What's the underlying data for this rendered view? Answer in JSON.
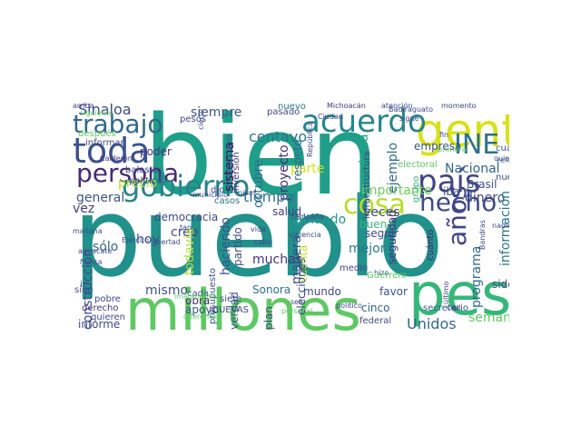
{
  "word_cloud": {
    "words": [
      {
        "text": "pueblo",
        "color": "#21918c",
        "rotate": false
      },
      {
        "text": "bien",
        "color": "#1f9e89",
        "rotate": false
      },
      {
        "text": "millones",
        "color": "#5ec962",
        "rotate": false
      },
      {
        "text": "peso",
        "color": "#35b779",
        "rotate": false
      },
      {
        "text": "gente",
        "color": "#d8e219",
        "rotate": false
      },
      {
        "text": "acuerdo",
        "color": "#25848e",
        "rotate": false
      },
      {
        "text": "trabajo",
        "color": "#31688e",
        "rotate": false
      },
      {
        "text": "toda",
        "color": "#3b528b",
        "rotate": false
      },
      {
        "text": "persona",
        "color": "#482878",
        "rotate": false
      },
      {
        "text": "INE",
        "color": "#2c728e",
        "rotate": false
      },
      {
        "text": "gobierno",
        "color": "#26828e",
        "rotate": false
      },
      {
        "text": "país",
        "color": "#414487",
        "rotate": false
      },
      {
        "text": "hecho",
        "color": "#3e4a89",
        "rotate": false
      },
      {
        "text": "cosa",
        "color": "#b5de2b",
        "rotate": false
      },
      {
        "text": "años",
        "color": "#414487",
        "rotate": true
      },
      {
        "text": "Sinaloa",
        "color": "#3e4a89",
        "rotate": false
      },
      {
        "text": "siempre",
        "color": "#38588c",
        "rotate": false
      },
      {
        "text": "centavo",
        "color": "#2a788e",
        "rotate": false
      },
      {
        "text": "sistema",
        "color": "#440154",
        "rotate": true
      },
      {
        "text": "octubre",
        "color": "#2e6e8e",
        "rotate": true
      },
      {
        "text": "proyecto",
        "color": "#472d7b",
        "rotate": true
      },
      {
        "text": "parte",
        "color": "#d0e11c",
        "rotate": false
      },
      {
        "text": "Secretaría",
        "color": "#22a884",
        "rotate": true
      },
      {
        "text": "ejemplo",
        "color": "#31688e",
        "rotate": true
      },
      {
        "text": "importante",
        "color": "#6ece58",
        "rotate": false
      },
      {
        "text": "Nacional",
        "color": "#33638d",
        "rotate": false
      },
      {
        "text": "Brasil",
        "color": "#3b528b",
        "rotate": false
      },
      {
        "text": "dinero",
        "color": "#3e4a89",
        "rotate": false
      },
      {
        "text": "empresa",
        "color": "#3b528b",
        "rotate": false
      },
      {
        "text": "poder",
        "color": "#46327e",
        "rotate": false
      },
      {
        "text": "precio",
        "color": "#bddf26",
        "rotate": false
      },
      {
        "text": "general",
        "color": "#3b528b",
        "rotate": false
      },
      {
        "text": "vez",
        "color": "#443983",
        "rotate": false
      },
      {
        "text": "tiempo",
        "color": "#2c728e",
        "rotate": false
      },
      {
        "text": "democracia",
        "color": "#3e4a89",
        "rotate": false
      },
      {
        "text": "salud",
        "color": "#423f85",
        "rotate": false
      },
      {
        "text": "hablando",
        "color": "#1f9a8a",
        "rotate": false
      },
      {
        "text": "veces",
        "color": "#3e4a89",
        "rotate": false
      },
      {
        "text": "buena",
        "color": "#35b779",
        "rotate": false
      },
      {
        "text": "seguridad",
        "color": "#46327e",
        "rotate": true
      },
      {
        "text": "iba",
        "color": "#3b528b",
        "rotate": false
      },
      {
        "text": "información",
        "color": "#2c728e",
        "rotate": true
      },
      {
        "text": "programa",
        "color": "#31688e",
        "rotate": true
      },
      {
        "text": "sólo",
        "color": "#31688e",
        "rotate": false
      },
      {
        "text": "hoy",
        "color": "#3b528b",
        "rotate": false
      },
      {
        "text": "creo",
        "color": "#3e4a89",
        "rotate": false
      },
      {
        "text": "muchas",
        "color": "#46327e",
        "rotate": false
      },
      {
        "text": "manera",
        "color": "#3e4a89",
        "rotate": true
      },
      {
        "text": "cuenta",
        "color": "#bddf26",
        "rotate": true
      },
      {
        "text": "mejor",
        "color": "#2a788e",
        "rotate": false
      },
      {
        "text": "seguir",
        "color": "#3e4a89",
        "rotate": false
      },
      {
        "text": "construcción",
        "color": "#3e4a89",
        "rotate": true
      },
      {
        "text": "mismo",
        "color": "#3b528b",
        "rotate": false
      },
      {
        "text": "Sonora",
        "color": "#2c728e",
        "rotate": false
      },
      {
        "text": "mundo",
        "color": "#3e4a89",
        "rotate": false
      },
      {
        "text": "favor",
        "color": "#3b528b",
        "rotate": false
      },
      {
        "text": "cinco",
        "color": "#33638d",
        "rotate": false
      },
      {
        "text": "Unidos",
        "color": "#31688e",
        "rotate": false
      },
      {
        "text": "semana",
        "color": "#5ec962",
        "rotate": false
      },
      {
        "text": "informe",
        "color": "#3e4a89",
        "rotate": false
      },
      {
        "text": "todavía",
        "color": "#b5de2b",
        "rotate": true
      },
      {
        "text": "haciendo",
        "color": "#3b528b",
        "rotate": true
      },
      {
        "text": "partido",
        "color": "#3e4a89",
        "rotate": true
      },
      {
        "text": "verdad",
        "color": "#3b528b",
        "rotate": true
      },
      {
        "text": "plan",
        "color": "#3e4a89",
        "rotate": true
      },
      {
        "text": "obra",
        "color": "#482878",
        "rotate": false
      },
      {
        "text": "apoyo",
        "color": "#3b528b",
        "rotate": false
      },
      {
        "text": "elecciones",
        "color": "#3e4a89",
        "rotate": true
      },
      {
        "text": "sido",
        "color": "#3e4a89",
        "rotate": false
      },
      {
        "text": "secretario",
        "color": "#3b528b",
        "rotate": false
      },
      {
        "text": "Michoacán",
        "color": "#46327e",
        "rotate": false
      },
      {
        "text": "pasado",
        "color": "#3e4a89",
        "rotate": false
      },
      {
        "text": "nuevo",
        "color": "#2a788e",
        "rotate": false
      },
      {
        "text": "respeto",
        "color": "#31688e",
        "rotate": true
      },
      {
        "text": "mexicano",
        "color": "#3b528b",
        "rotate": true
      },
      {
        "text": "inversión",
        "color": "#46327e",
        "rotate": true
      },
      {
        "text": "informar",
        "color": "#3e4a89",
        "rotate": false
      },
      {
        "text": "pesos",
        "color": "#3e4a89",
        "rotate": false
      },
      {
        "text": "dio",
        "color": "#3e4a89",
        "rotate": false
      },
      {
        "text": "grupo",
        "color": "#35b779",
        "rotate": true
      },
      {
        "text": "cuatro",
        "color": "#3b528b",
        "rotate": false
      },
      {
        "text": "reforma",
        "color": "#31688e",
        "rotate": false
      },
      {
        "text": "nueva",
        "color": "#3e4a89",
        "rotate": false
      },
      {
        "text": "cuánto",
        "color": "#482878",
        "rotate": true
      },
      {
        "text": "siete",
        "color": "#3e4a89",
        "rotate": false
      },
      {
        "text": "cada",
        "color": "#3b528b",
        "rotate": false
      },
      {
        "text": "pobre",
        "color": "#3e4a89",
        "rotate": false
      },
      {
        "text": "derecho",
        "color": "#46327e",
        "rotate": false
      },
      {
        "text": "quieren",
        "color": "#3e4a89",
        "rotate": false
      },
      {
        "text": "sino",
        "color": "#3e4a89",
        "rotate": false
      },
      {
        "text": "ir",
        "color": "#3b528b",
        "rotate": false
      },
      {
        "text": "federal",
        "color": "#3e4a89",
        "rotate": false
      },
      {
        "text": "casos",
        "color": "#2c728e",
        "rotate": false
      },
      {
        "text": "tan",
        "color": "#3e4a89",
        "rotate": false
      },
      {
        "text": "medio",
        "color": "#3e4a89",
        "rotate": false
      },
      {
        "text": "hizo",
        "color": "#3e4a89",
        "rotate": false
      },
      {
        "text": "Guerrero",
        "color": "#5ec962",
        "rotate": false
      },
      {
        "text": "CUEVAS",
        "color": "#3e4a89",
        "rotate": false
      },
      {
        "text": "presupuesto",
        "color": "#3b528b",
        "rotate": true
      },
      {
        "text": "infraestructura",
        "color": "#3e4a89",
        "rotate": true
      },
      {
        "text": "electoral",
        "color": "#5ec962",
        "rotate": false
      },
      {
        "text": "arriba",
        "color": "#3e4a89",
        "rotate": false
      },
      {
        "text": "siguiente",
        "color": "#5ec962",
        "rotate": false
      },
      {
        "text": "después",
        "color": "#5ec962",
        "rotate": false
      },
      {
        "text": "Calderón",
        "color": "#46327e",
        "rotate": false
      },
      {
        "text": "balasto",
        "color": "#3e4a89",
        "rotate": false
      },
      {
        "text": "política",
        "color": "#3b528b",
        "rotate": false
      },
      {
        "text": "municipio",
        "color": "#3e4a89",
        "rotate": false
      },
      {
        "text": "nivel",
        "color": "#3e4a89",
        "rotate": false
      },
      {
        "text": "mañana",
        "color": "#3e4a89",
        "rotate": false
      },
      {
        "text": "aguacate",
        "color": "#3e4a89",
        "rotate": false
      },
      {
        "text": "nunca",
        "color": "#3e4a89",
        "rotate": false
      },
      {
        "text": "Ejército",
        "color": "#3e4a89",
        "rotate": false
      },
      {
        "text": "libertad",
        "color": "#3e4a89",
        "rotate": false
      },
      {
        "text": "campaña",
        "color": "#3e4a89",
        "rotate": false
      },
      {
        "text": "vida",
        "color": "#3e4a89",
        "rotate": false
      },
      {
        "text": "violencia",
        "color": "#3e4a89",
        "rotate": false
      },
      {
        "text": "atención",
        "color": "#3e4a89",
        "rotate": false
      },
      {
        "text": "Badiraguato",
        "color": "#3e4a89",
        "rotate": false
      },
      {
        "text": "momento",
        "color": "#3e4a89",
        "rotate": false
      },
      {
        "text": "cierto",
        "color": "#3e4a89",
        "rotate": true
      },
      {
        "text": "sigue",
        "color": "#3e4a89",
        "rotate": false
      },
      {
        "text": "fin",
        "color": "#3e4a89",
        "rotate": false
      },
      {
        "text": "primera",
        "color": "#5ec962",
        "rotate": false
      },
      {
        "text": "quiero",
        "color": "#3e4a89",
        "rotate": false
      },
      {
        "text": "Ciudad",
        "color": "#3e4a89",
        "rotate": false
      },
      {
        "text": "República",
        "color": "#3e4a89",
        "rotate": true
      },
      {
        "text": "político",
        "color": "#3e4a89",
        "rotate": false
      },
      {
        "text": "casi",
        "color": "#3e4a89",
        "rotate": false
      },
      {
        "text": "último",
        "color": "#3e4a89",
        "rotate": true
      },
      {
        "text": "Bandras",
        "color": "#3e4a89",
        "rotate": true
      },
      {
        "text": "nadie",
        "color": "#3e4a89",
        "rotate": false
      },
      {
        "text": "seis",
        "color": "#3e4a89",
        "rotate": false
      },
      {
        "text": "personal",
        "color": "#5ec962",
        "rotate": false
      },
      {
        "text": "diferentes",
        "color": "#5ec962",
        "rotate": false
      },
      {
        "text": "imaginense",
        "color": "#5ec962",
        "rotate": false
      },
      {
        "text": "cabo",
        "color": "#3e4a89",
        "rotate": false
      }
    ]
  }
}
